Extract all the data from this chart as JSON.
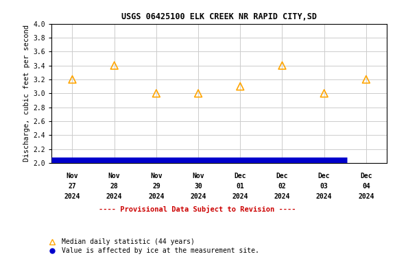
{
  "title": "USGS 06425100 ELK CREEK NR RAPID CITY,SD",
  "ylabel": "Discharge, cubic feet per second",
  "x_positions": [
    0,
    1,
    2,
    3,
    4,
    5,
    6,
    7
  ],
  "x_labels_line1": [
    "Nov",
    "Nov",
    "Nov",
    "Nov",
    "Dec",
    "Dec",
    "Dec",
    "Dec"
  ],
  "x_labels_line2": [
    "27",
    "28",
    "29",
    "30",
    "01",
    "02",
    "03",
    "04"
  ],
  "x_labels_line3": [
    "2024",
    "2024",
    "2024",
    "2024",
    "2024",
    "2024",
    "2024",
    "2024"
  ],
  "median_values": [
    3.2,
    3.4,
    3.0,
    3.0,
    3.1,
    3.4,
    3.0,
    3.2
  ],
  "ice_value": 2.03,
  "ylim_min": 2.0,
  "ylim_max": 4.0,
  "yticks": [
    2.0,
    2.2,
    2.4,
    2.6,
    2.8,
    3.0,
    3.2,
    3.4,
    3.6,
    3.8,
    4.0
  ],
  "triangle_color": "#FFA500",
  "ice_color": "#0000CC",
  "grid_color": "#cccccc",
  "provisional_text": "---- Provisional Data Subject to Revision ----",
  "provisional_color": "#cc0000",
  "bg_color": "#ffffff"
}
